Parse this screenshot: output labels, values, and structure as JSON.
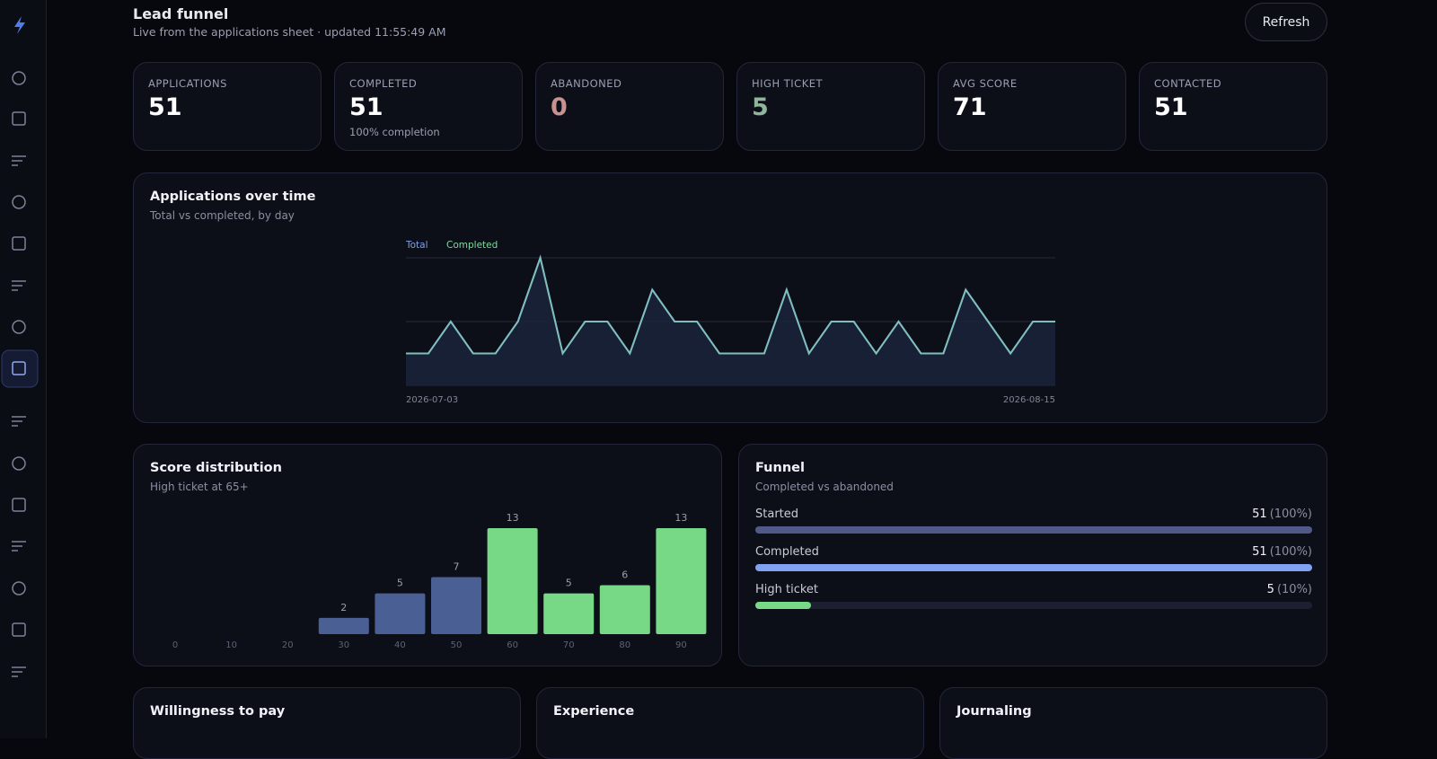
{
  "header": {
    "title": "Lead funnel",
    "subtitle": "Live from the applications sheet · updated 11:55:49 AM",
    "refresh_button": "Refresh"
  },
  "kpis": [
    {
      "label": "APPLICATIONS",
      "value": 51,
      "color": "#ffffff"
    },
    {
      "label": "COMPLETED",
      "value": 51,
      "note": "100% completion",
      "color": "#ffffff"
    },
    {
      "label": "ABANDONED",
      "value": 0,
      "color": "#c9918f"
    },
    {
      "label": "HIGH TICKET",
      "value": 5,
      "color": "#8fb59a"
    },
    {
      "label": "AVG SCORE",
      "value": 71,
      "color": "#ffffff"
    },
    {
      "label": "CONTACTED",
      "value": 51,
      "color": "#ffffff"
    }
  ],
  "timeline_chart": {
    "type": "line",
    "title": "Applications over time",
    "subtitle": "Total vs completed, by day",
    "categories": [
      "2026-07-03",
      null,
      null,
      null,
      null,
      null,
      null,
      null,
      null,
      null,
      null,
      null,
      null,
      null,
      null,
      null,
      null,
      null,
      null,
      null,
      null,
      null,
      null,
      null,
      null,
      null,
      null,
      null,
      null,
      "2026-08-15"
    ],
    "series": [
      {
        "name": "Total",
        "color": "#7fa0e0",
        "values": [
          1,
          1,
          2,
          1,
          1,
          2,
          4,
          1,
          2,
          2,
          1,
          3,
          2,
          2,
          1,
          1,
          1,
          3,
          1,
          2,
          2,
          1,
          2,
          1,
          1,
          3,
          2,
          1,
          2,
          2
        ]
      },
      {
        "name": "Completed",
        "color": "#7fd8a0",
        "values": [
          1,
          1,
          2,
          1,
          1,
          2,
          4,
          1,
          2,
          2,
          1,
          3,
          2,
          2,
          1,
          1,
          1,
          3,
          1,
          2,
          2,
          1,
          2,
          1,
          1,
          3,
          2,
          1,
          2,
          2
        ]
      }
    ],
    "ylim": [
      0,
      4
    ],
    "yticks": [
      0,
      2,
      4
    ],
    "grid": true
  },
  "score_chart": {
    "type": "bar",
    "title": "Score distribution",
    "subtitle": "High ticket at 65+",
    "categories": [
      "0",
      "10",
      "20",
      "30",
      "40",
      "50",
      "60",
      "70",
      "80",
      "90"
    ],
    "values": [
      0,
      0,
      0,
      2,
      5,
      7,
      13,
      5,
      6,
      13
    ],
    "colors": [
      "#4a5f94",
      "#4a5f94",
      "#4a5f94",
      "#4a5f94",
      "#4a5f94",
      "#4a5f94",
      "#77d886",
      "#77d886",
      "#77d886",
      "#77d886"
    ],
    "ylim": [
      0,
      13
    ]
  },
  "funnel_chart": {
    "type": "hbar",
    "title": "Funnel",
    "subtitle": "Completed vs abandoned",
    "categories": [
      "Started",
      "Completed",
      "High ticket"
    ],
    "counts": [
      51,
      51,
      5
    ],
    "values": [
      100,
      100,
      10
    ],
    "value_labels": [
      "(100%)",
      "(100%)",
      "(10%)"
    ],
    "colors": [
      "#4f5a8a",
      "#7fa2f2",
      "#77d886"
    ],
    "xlim": [
      0,
      100
    ]
  },
  "bottom_cards": [
    {
      "title": "Willingness to pay"
    },
    {
      "title": "Experience"
    },
    {
      "title": "Journaling"
    }
  ]
}
